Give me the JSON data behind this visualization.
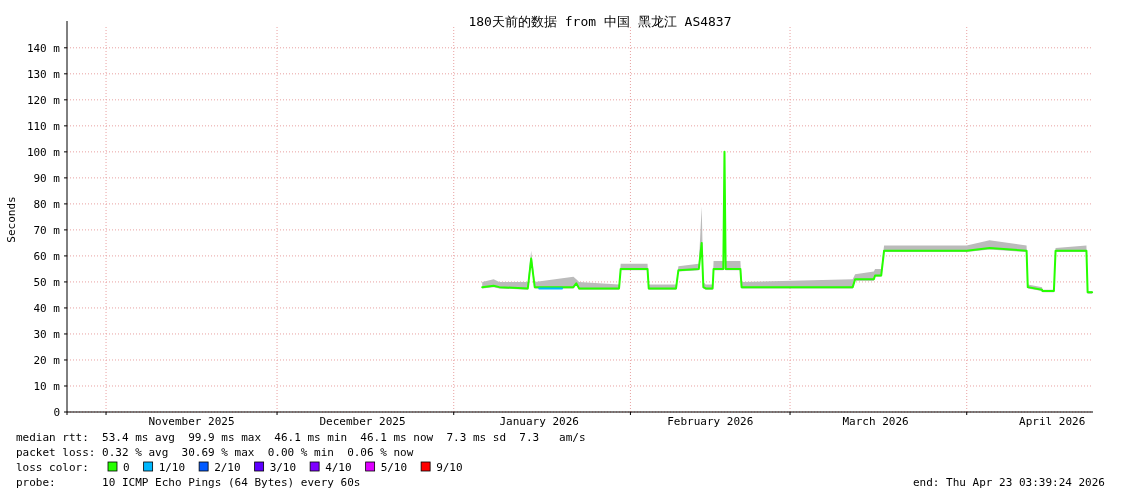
{
  "chart_data": {
    "type": "line",
    "title": "180天前的数据 from 中国 黑龙江 AS4837",
    "ylabel": "Seconds",
    "xlim": [
      "2025-10-25T03:39",
      "2026-04-23T03:39"
    ],
    "xticks": [
      {
        "value": "2025-11-01",
        "label": null
      },
      {
        "value": "2025-11-16",
        "label": "November 2025"
      },
      {
        "value": "2025-12-01",
        "label": null
      },
      {
        "value": "2025-12-16",
        "label": "December 2025"
      },
      {
        "value": "2026-01-01",
        "label": null
      },
      {
        "value": "2026-01-16",
        "label": "January 2026"
      },
      {
        "value": "2026-02-01",
        "label": null
      },
      {
        "value": "2026-02-15",
        "label": "February 2026"
      },
      {
        "value": "2026-03-01",
        "label": null
      },
      {
        "value": "2026-03-16",
        "label": "March 2026"
      },
      {
        "value": "2026-04-01",
        "label": null
      },
      {
        "value": "2026-04-16",
        "label": "April 2026"
      }
    ],
    "ylim": [
      0,
      148
    ],
    "yticks": [
      0,
      {
        "value": 10,
        "label": "10 m"
      },
      {
        "value": 20,
        "label": "20 m"
      },
      {
        "value": 30,
        "label": "30 m"
      },
      {
        "value": 40,
        "label": "40 m"
      },
      {
        "value": 50,
        "label": "50 m"
      },
      {
        "value": 60,
        "label": "60 m"
      },
      {
        "value": 70,
        "label": "70 m"
      },
      {
        "value": 80,
        "label": "80 m"
      },
      {
        "value": 90,
        "label": "90 m"
      },
      {
        "value": 100,
        "label": "100 m"
      },
      {
        "value": 110,
        "label": "110 m"
      },
      {
        "value": 120,
        "label": "120 m"
      },
      {
        "value": 130,
        "label": "130 m"
      },
      {
        "value": 140,
        "label": "140 m"
      }
    ],
    "grid": true,
    "legend": "bottom",
    "legend_title": "loss color:",
    "series": [
      {
        "name": "0",
        "color": "#26ff00",
        "x": [
          "2026-01-06T00:00",
          "2026-01-08T00:00",
          "2026-01-09T00:00",
          "2026-01-14T00:00",
          "2026-01-14T14:00",
          "2026-01-15T05:00",
          "2026-01-22T00:00",
          "2026-01-22T12:00",
          "2026-01-23T00:00",
          "2026-01-30T00:00",
          "2026-01-30T07:00",
          "2026-02-04T00:00",
          "2026-02-04T05:00",
          "2026-02-09T00:00",
          "2026-02-09T10:00",
          "2026-02-13T00:00",
          "2026-02-13T12:00",
          "2026-02-13T19:00",
          "2026-02-14T05:00",
          "2026-02-15T10:00",
          "2026-02-15T14:00",
          "2026-02-17T07:00",
          "2026-02-17T12:00",
          "2026-02-17T17:00",
          "2026-02-20T07:00",
          "2026-02-20T12:00",
          "2026-03-12T00:00",
          "2026-03-12T10:00",
          "2026-03-15T17:00",
          "2026-03-15T22:00",
          "2026-03-17T00:00",
          "2026-03-17T12:00",
          "2026-04-01T00:00",
          "2026-04-05T00:00",
          "2026-04-11T12:00",
          "2026-04-11T17:00",
          "2026-04-14T05:00",
          "2026-04-14T07:00",
          "2026-04-16T07:00",
          "2026-04-16T14:00",
          "2026-04-22T00:00",
          "2026-04-22T05:00",
          "2026-04-23T00:00"
        ],
        "values": [
          48,
          48.5,
          48,
          47.5,
          59,
          48,
          48,
          49.5,
          47.5,
          47.5,
          55,
          55,
          47.5,
          47.5,
          54.5,
          55,
          65,
          48,
          47.5,
          47.5,
          55,
          55,
          100,
          55,
          55,
          48,
          48,
          51,
          51,
          52.5,
          52.5,
          62,
          62,
          63,
          62,
          48,
          47,
          46.5,
          46.5,
          62,
          62,
          46,
          46
        ],
        "lower": [
          47.5,
          48,
          47.5,
          47,
          58,
          47.5,
          47.5,
          49,
          47,
          47,
          54.5,
          54.5,
          47,
          47,
          54,
          54.5,
          64,
          47.5,
          47,
          47,
          54.5,
          54.5,
          99,
          54.5,
          54.5,
          47.5,
          47.5,
          50.5,
          50.5,
          52,
          52,
          61.5,
          61.5,
          62.5,
          61.5,
          47.5,
          46.5,
          46,
          46,
          61.5,
          61.5,
          45.5,
          45.5
        ],
        "upper": [
          50,
          51,
          50,
          50,
          62,
          50,
          52,
          51,
          50,
          49,
          57,
          57,
          49,
          49,
          56,
          57,
          79,
          50,
          49,
          49,
          58,
          58,
          101,
          58,
          58,
          50,
          51,
          53,
          54,
          55,
          55,
          64,
          64,
          66,
          64,
          49,
          48,
          47,
          47,
          63,
          64,
          46.5,
          46.5
        ]
      },
      {
        "name": "1/10",
        "color": "#00b8ff",
        "x": [
          "2026-01-16T00:00",
          "2026-01-20T00:00"
        ],
        "values": [
          47.5,
          47.5
        ]
      },
      {
        "name": "2/10",
        "color": "#0059ff"
      },
      {
        "name": "3/10",
        "color": "#5e00ff"
      },
      {
        "name": "4/10",
        "color": "#7e00ff"
      },
      {
        "name": "5/10",
        "color": "#dd00ff"
      },
      {
        "name": "9/10",
        "color": "#ff0000"
      }
    ],
    "annotations": [
      "median rtt:  53.4 ms avg  99.9 ms max  46.1 ms min  46.1 ms now  7.3 ms sd  7.3   am/s",
      "packet loss: 0.32 % avg  30.69 % max  0.00 % min  0.06 % now",
      "probe:       10 ICMP Echo Pings (64 Bytes) every 60s",
      "end: Thu Apr 23 03:39:24 2026"
    ]
  }
}
